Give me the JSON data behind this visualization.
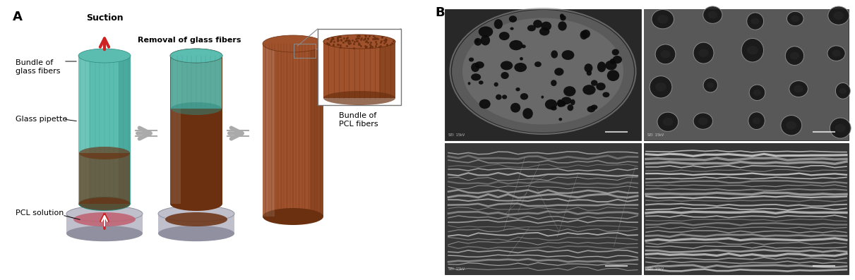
{
  "fig_width": 12.11,
  "fig_height": 3.97,
  "bg_color": "#ffffff",
  "label_A": "A",
  "label_B": "B",
  "suction_text": "Suction",
  "removal_text": "Removal of glass fibers",
  "bundle_glass_text": "Bundle of\nglass fibers",
  "glass_pipette_text": "Glass pipette",
  "pcl_solution_text": "PCL solution",
  "bundle_pcl_text": "Bundle of\nPCL fibers",
  "teal_light": "#5bbcb0",
  "teal_dark": "#2e8a7e",
  "brown_light": "#a0522d",
  "brown_dark": "#6B3010",
  "base_gray": "#c0c0cc",
  "base_rim": "#9090a0",
  "pcl_red": "#c06070",
  "red_arrow": "#cc2222",
  "gray_arrow": "#aaaaaa"
}
